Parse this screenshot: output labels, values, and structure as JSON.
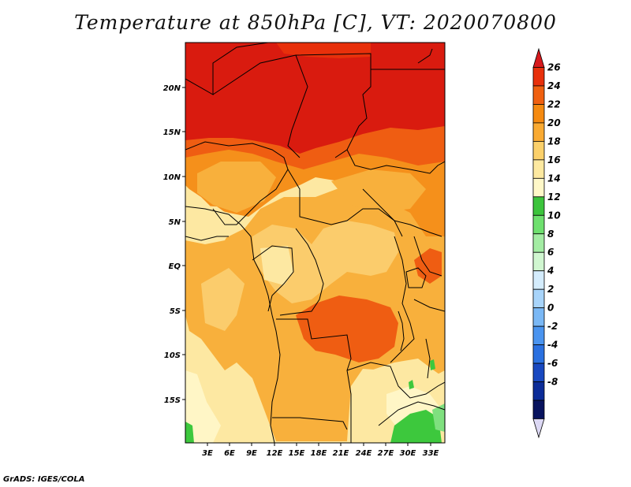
{
  "title": "Temperature at 850hPa [C], VT: 2020070800",
  "credit": "GrADS: IGES/COLA",
  "map": {
    "lat_labels": [
      "20N",
      "15N",
      "10N",
      "5N",
      "EQ",
      "5S",
      "10S",
      "15S"
    ],
    "lon_labels": [
      "3E",
      "6E",
      "9E",
      "12E",
      "15E",
      "18E",
      "21E",
      "24E",
      "27E",
      "30E",
      "33E"
    ]
  },
  "colorbar": {
    "labels": [
      "26",
      "24",
      "22",
      "20",
      "18",
      "16",
      "14",
      "12",
      "10",
      "8",
      "6",
      "4",
      "2",
      "0",
      "-2",
      "-4",
      "-6",
      "-8"
    ],
    "colors": [
      "#d7191c",
      "#e8300b",
      "#f06010",
      "#f58a10",
      "#f9aa32",
      "#fbd06a",
      "#fde9a0",
      "#fff8c8",
      "#3cc43c",
      "#6ee06e",
      "#a3eca3",
      "#d0f6d0",
      "#d4ecfc",
      "#a8d4fa",
      "#7ab8f5",
      "#4a94ef",
      "#2a70e0",
      "#1848c0",
      "#0c2c98",
      "#08135e",
      "#dcd8f4"
    ]
  },
  "colors": {
    "hot": "#d91b0f",
    "warm": "#ef5d12",
    "orange": "#f5901b",
    "light_orange": "#f8b03c",
    "tan": "#fbcc6c",
    "pale": "#fde8a2",
    "cream": "#fff6c6",
    "green": "#3dc83d",
    "light_green": "#7fe07f"
  }
}
